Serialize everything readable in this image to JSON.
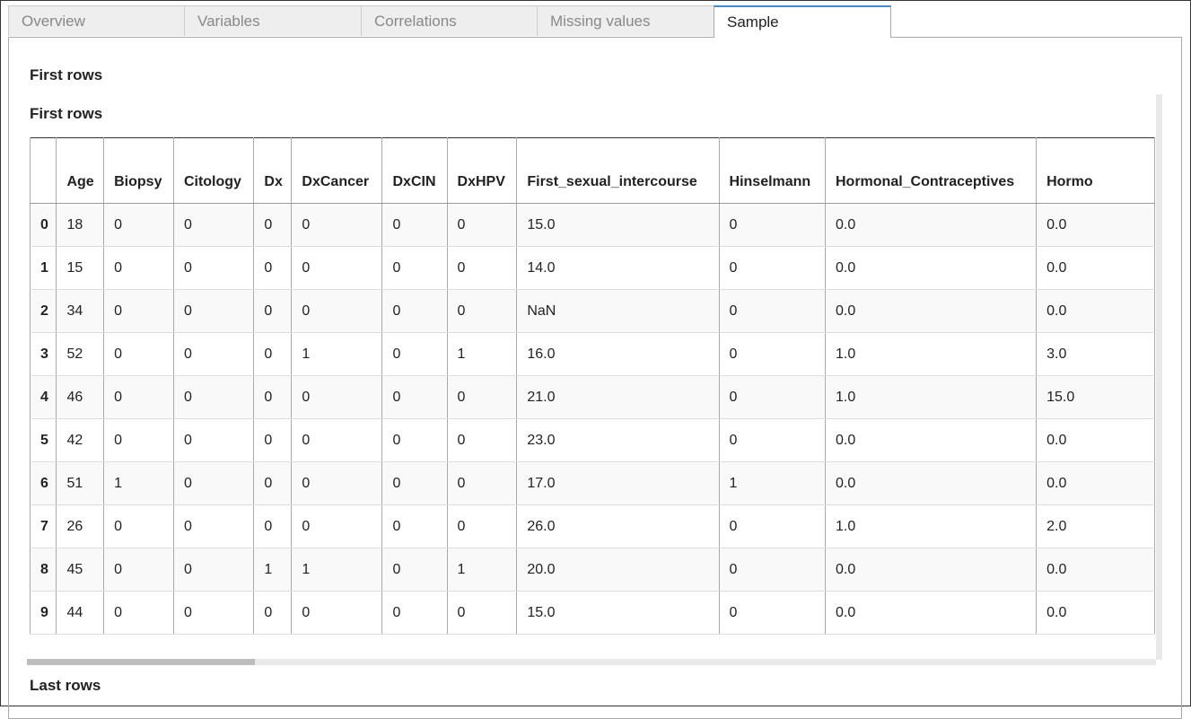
{
  "tabs": [
    "Overview",
    "Variables",
    "Correlations",
    "Missing values",
    "Sample"
  ],
  "section_title": "First rows",
  "table": {
    "title": "First rows",
    "columns": [
      "Age",
      "Biopsy",
      "Citology",
      "Dx",
      "DxCancer",
      "DxCIN",
      "DxHPV",
      "First_sexual_intercourse",
      "Hinselmann",
      "Hormonal_Contraceptives",
      "Hormo"
    ],
    "rows": [
      [
        "0",
        "18",
        "0",
        "0",
        "0",
        "0",
        "0",
        "0",
        "15.0",
        "0",
        "0.0",
        "0.0"
      ],
      [
        "1",
        "15",
        "0",
        "0",
        "0",
        "0",
        "0",
        "0",
        "14.0",
        "0",
        "0.0",
        "0.0"
      ],
      [
        "2",
        "34",
        "0",
        "0",
        "0",
        "0",
        "0",
        "0",
        "NaN",
        "0",
        "0.0",
        "0.0"
      ],
      [
        "3",
        "52",
        "0",
        "0",
        "0",
        "1",
        "0",
        "1",
        "16.0",
        "0",
        "1.0",
        "3.0"
      ],
      [
        "4",
        "46",
        "0",
        "0",
        "0",
        "0",
        "0",
        "0",
        "21.0",
        "0",
        "1.0",
        "15.0"
      ],
      [
        "5",
        "42",
        "0",
        "0",
        "0",
        "0",
        "0",
        "0",
        "23.0",
        "0",
        "0.0",
        "0.0"
      ],
      [
        "6",
        "51",
        "1",
        "0",
        "0",
        "0",
        "0",
        "0",
        "17.0",
        "1",
        "0.0",
        "0.0"
      ],
      [
        "7",
        "26",
        "0",
        "0",
        "0",
        "0",
        "0",
        "0",
        "26.0",
        "0",
        "1.0",
        "2.0"
      ],
      [
        "8",
        "45",
        "0",
        "0",
        "1",
        "1",
        "0",
        "1",
        "20.0",
        "0",
        "0.0",
        "0.0"
      ],
      [
        "9",
        "44",
        "0",
        "0",
        "0",
        "0",
        "0",
        "0",
        "15.0",
        "0",
        "0.0",
        "0.0"
      ]
    ]
  },
  "next_section_title": "Last rows"
}
